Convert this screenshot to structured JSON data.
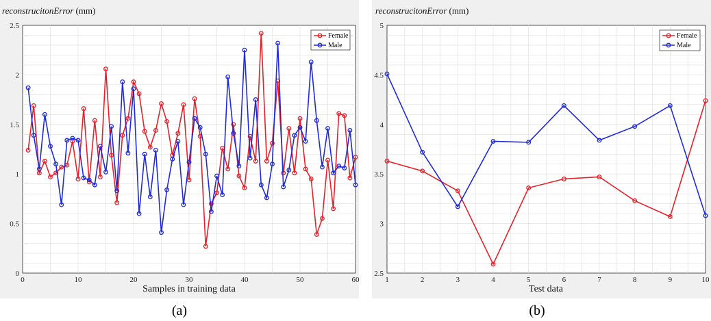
{
  "colors": {
    "female": "#e8202a",
    "male": "#1f2bd8",
    "frame": "#f0f0f0",
    "grid": "#dedede"
  },
  "chart_data": [
    {
      "type": "line",
      "title": "reconstrucitonError",
      "title_unit": "(mm)",
      "xlabel": "Samples in training data",
      "caption": "(a)",
      "xlim": [
        0,
        60
      ],
      "ylim": [
        0,
        2.5
      ],
      "xticks": [
        0,
        10,
        20,
        30,
        40,
        50,
        60
      ],
      "yticks": [
        0,
        0.5,
        1,
        1.5,
        2,
        2.5
      ],
      "ytick_labels": [
        "0",
        "0.5",
        "1",
        "1.5",
        "2",
        "2.5"
      ],
      "legend_position": "top-right",
      "grid": true,
      "x": [
        1,
        2,
        3,
        4,
        5,
        6,
        7,
        8,
        9,
        10,
        11,
        12,
        13,
        14,
        15,
        16,
        17,
        18,
        19,
        20,
        21,
        22,
        23,
        24,
        25,
        26,
        27,
        28,
        29,
        30,
        31,
        32,
        33,
        34,
        35,
        36,
        37,
        38,
        39,
        40,
        41,
        42,
        43,
        44,
        45,
        46,
        47,
        48,
        49,
        50,
        51,
        52,
        53,
        54,
        55,
        56,
        57,
        58,
        59,
        60
      ],
      "series": [
        {
          "name": "Female",
          "color": "#e8202a",
          "values": [
            1.24,
            1.69,
            1.01,
            1.13,
            0.97,
            1.01,
            1.07,
            1.09,
            1.33,
            0.95,
            1.66,
            0.92,
            1.54,
            0.97,
            2.06,
            1.19,
            0.71,
            1.39,
            1.56,
            1.93,
            1.81,
            1.43,
            1.27,
            1.44,
            1.71,
            1.53,
            1.19,
            1.41,
            1.7,
            0.94,
            1.76,
            1.38,
            0.27,
            0.7,
            0.81,
            1.26,
            1.05,
            1.5,
            0.98,
            0.86,
            1.38,
            1.13,
            2.42,
            1.13,
            1.31,
            1.94,
            1.01,
            1.46,
            1.01,
            1.56,
            1.05,
            0.95,
            0.39,
            0.55,
            1.14,
            0.65,
            1.61,
            1.59,
            0.96,
            1.17
          ]
        },
        {
          "name": "Male",
          "color": "#1f2bd8",
          "values": [
            1.87,
            1.39,
            1.05,
            1.6,
            1.28,
            1.1,
            0.69,
            1.34,
            1.36,
            1.34,
            0.96,
            0.94,
            0.89,
            1.28,
            1.02,
            1.48,
            0.83,
            1.93,
            1.21,
            1.86,
            0.6,
            1.2,
            0.77,
            1.24,
            0.41,
            0.84,
            1.15,
            1.33,
            0.69,
            1.12,
            1.56,
            1.47,
            1.2,
            0.62,
            0.98,
            0.79,
            1.98,
            1.41,
            1.08,
            2.25,
            1.16,
            1.75,
            0.89,
            0.76,
            1.1,
            2.32,
            0.87,
            1.04,
            1.39,
            1.47,
            1.33,
            2.13,
            1.54,
            1.07,
            1.46,
            1.01,
            1.08,
            1.06,
            1.44,
            0.89
          ]
        }
      ]
    },
    {
      "type": "line",
      "title": "reconstrucitonError",
      "title_unit": "(mm)",
      "xlabel": "Test data",
      "caption": "(b)",
      "xlim": [
        1,
        10
      ],
      "ylim": [
        2.5,
        5
      ],
      "xticks": [
        1,
        2,
        3,
        4,
        5,
        6,
        7,
        8,
        9,
        10
      ],
      "yticks": [
        2.5,
        3,
        3.5,
        4,
        4.5,
        5
      ],
      "ytick_labels": [
        "2.5",
        "3",
        "3.5",
        "4",
        "4.5",
        "5"
      ],
      "legend_position": "top-right",
      "grid": true,
      "x": [
        1,
        2,
        3,
        4,
        5,
        6,
        7,
        8,
        9,
        10
      ],
      "series": [
        {
          "name": "Female",
          "color": "#e8202a",
          "values": [
            3.63,
            3.53,
            3.33,
            2.59,
            3.36,
            3.45,
            3.47,
            3.23,
            3.07,
            4.24
          ]
        },
        {
          "name": "Male",
          "color": "#1f2bd8",
          "values": [
            4.51,
            3.72,
            3.17,
            3.83,
            3.82,
            4.19,
            3.84,
            3.98,
            4.19,
            3.08
          ]
        }
      ]
    }
  ]
}
